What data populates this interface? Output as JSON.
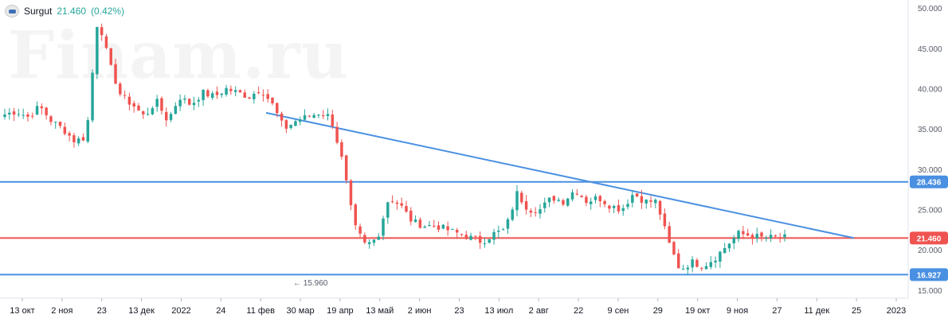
{
  "legend": {
    "symbol": "Surgut",
    "price": "21.460",
    "change": "(0.42%)",
    "logo_icon": "surgut-logo-icon"
  },
  "watermark": "Finam.ru",
  "chart_data": {
    "type": "candlestick",
    "title": "",
    "ylim": [
      14.0,
      51.0
    ],
    "y_ticks": [
      "15.000",
      "20.000",
      "25.000",
      "30.000",
      "35.000",
      "40.000",
      "45.000",
      "50.000"
    ],
    "y_tick_values": [
      15,
      20,
      25,
      30,
      35,
      40,
      45,
      50
    ],
    "x_ticks": [
      "13 окт",
      "2 ноя",
      "23",
      "13 дек",
      "2022",
      "24",
      "11 фев",
      "30 мар",
      "19 апр",
      "13 май",
      "2 июн",
      "23",
      "13 июл",
      "2 авг",
      "22",
      "9 сен",
      "29",
      "19 окт",
      "9 ноя",
      "27",
      "11 дек",
      "25",
      "2023"
    ],
    "price_path": [
      36.8,
      37.2,
      36.5,
      37.8,
      36.0,
      35.0,
      33.5,
      34.0,
      49.0,
      43.0,
      39.0,
      38.0,
      36.5,
      38.5,
      36.0,
      39.0,
      38.0,
      39.5,
      39.0,
      40.0,
      39.5,
      39.0,
      40.0,
      38.0,
      35.0,
      36.0,
      36.5,
      37.0,
      36.5,
      31.0,
      23.0,
      20.5,
      21.5,
      26.5,
      25.5,
      23.5,
      23.0,
      23.0,
      22.5,
      22.0,
      21.5,
      21.0,
      22.0,
      22.5,
      27.0,
      25.0,
      25.0,
      26.5,
      26.0,
      27.5,
      26.0,
      26.5,
      25.5,
      25.0,
      27.0,
      26.0,
      26.0,
      21.0,
      17.5,
      18.5,
      18.0,
      19.0,
      20.5,
      22.0,
      21.8,
      21.5,
      21.5,
      21.5
    ],
    "levels": [
      {
        "label": "28.436",
        "value": 28.436,
        "color": "#4a90e2"
      },
      {
        "label": "21.460",
        "value": 21.46,
        "color": "#ef5350"
      },
      {
        "label": "16.927",
        "value": 16.927,
        "color": "#4a90e2"
      }
    ],
    "trendline": {
      "from_price": 37.0,
      "to_price": 21.46,
      "color": "#4a90e2"
    },
    "annotation": {
      "label": "← 15.960",
      "value": 15.96
    },
    "colors": {
      "up": "#26a69a",
      "down": "#ef5350"
    }
  }
}
